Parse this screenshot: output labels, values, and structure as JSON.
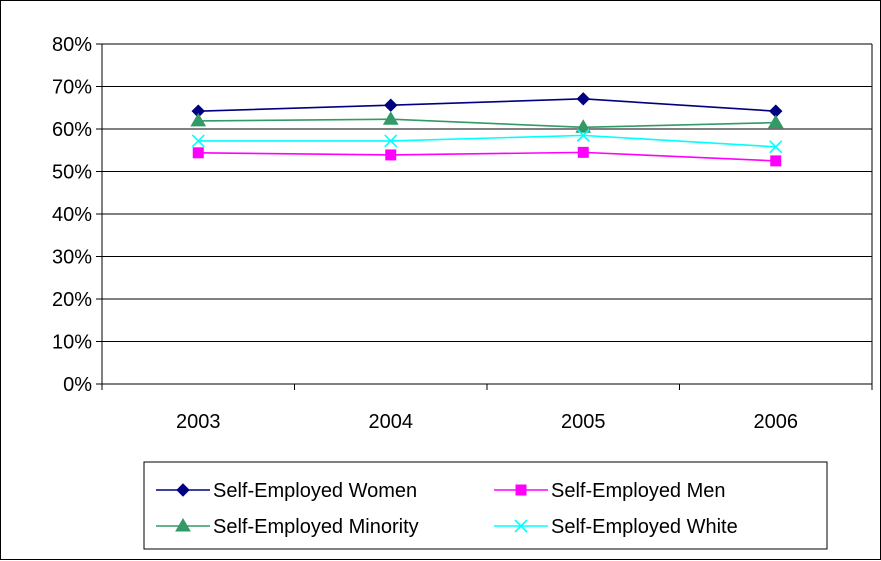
{
  "chart_data": {
    "type": "line",
    "title": "",
    "xlabel": "",
    "ylabel": "",
    "categories": [
      "2003",
      "2004",
      "2005",
      "2006"
    ],
    "ylim": [
      0,
      80
    ],
    "yticks": [
      "0%",
      "10%",
      "20%",
      "30%",
      "40%",
      "50%",
      "60%",
      "70%",
      "80%"
    ],
    "grid": true,
    "legend_position": "bottom",
    "series": [
      {
        "name": "Self-Employed Women",
        "values": [
          64.2,
          65.6,
          67.1,
          64.2
        ],
        "color": "#000080",
        "marker": "diamond"
      },
      {
        "name": "Self-Employed Men",
        "values": [
          54.4,
          53.9,
          54.5,
          52.5
        ],
        "color": "#FF00FF",
        "marker": "square"
      },
      {
        "name": "Self-Employed Minority",
        "values": [
          61.9,
          62.3,
          60.4,
          61.5
        ],
        "color": "#339966",
        "marker": "triangle"
      },
      {
        "name": "Self-Employed White",
        "values": [
          57.2,
          57.2,
          58.5,
          55.8
        ],
        "color": "#00FFFF",
        "marker": "x"
      }
    ]
  }
}
